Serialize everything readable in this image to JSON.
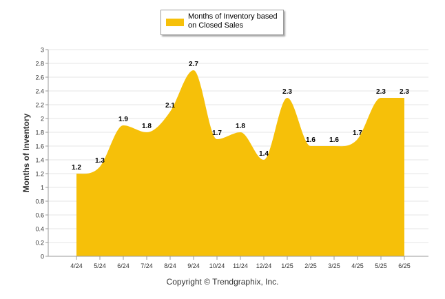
{
  "colors": {
    "series_fill": "#F6C009",
    "grid": "#E6E6E6",
    "axis": "#9A9A9A",
    "text": "#333333"
  },
  "legend": {
    "label": "Months of Inventory based on Closed Sales"
  },
  "copyright": "Copyright © Trendgraphix, Inc.",
  "chart_data": {
    "type": "area",
    "title": "",
    "xlabel": "",
    "ylabel": "Months of Inventory",
    "ylim": [
      0,
      3
    ],
    "yticks": [
      "0",
      "0.2",
      "0.4",
      "0.6",
      "0.8",
      "1",
      "1.2",
      "1.4",
      "1.6",
      "1.8",
      "2",
      "2.2",
      "2.4",
      "2.6",
      "2.8",
      "3"
    ],
    "categories": [
      "4/24",
      "5/24",
      "6/24",
      "7/24",
      "8/24",
      "9/24",
      "10/24",
      "11/24",
      "12/24",
      "1/25",
      "2/25",
      "3/25",
      "4/25",
      "5/25",
      "6/25"
    ],
    "grid": true,
    "legend_position": "top-center",
    "series": [
      {
        "name": "Months of Inventory based on Closed Sales",
        "values": [
          1.2,
          1.3,
          1.9,
          1.8,
          2.1,
          2.7,
          1.7,
          1.8,
          1.4,
          2.3,
          1.6,
          1.6,
          1.7,
          2.3,
          2.3
        ],
        "labels": [
          "1.2",
          "1.3",
          "1.9",
          "1.8",
          "2.1",
          "2.7",
          "1.7",
          "1.8",
          "1.4",
          "2.3",
          "1.6",
          "1.6",
          "1.7",
          "2.3",
          "2.3"
        ]
      }
    ]
  }
}
